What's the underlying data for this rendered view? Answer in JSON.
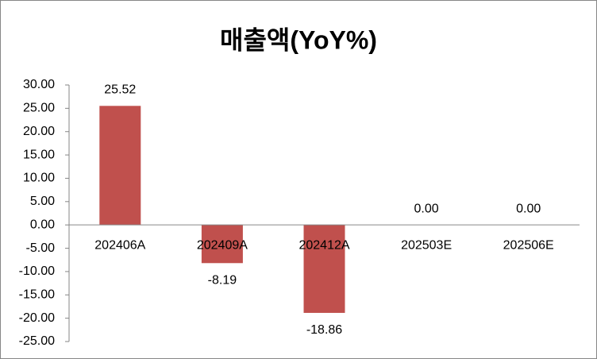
{
  "chart_data": {
    "type": "bar",
    "title": "매출액(YoY%)",
    "categories": [
      "202406A",
      "202409A",
      "202412A",
      "202503E",
      "202506E"
    ],
    "values": [
      25.52,
      -8.19,
      -18.86,
      0,
      0
    ],
    "value_labels": [
      "25.52",
      "-8.19",
      "-18.86",
      "0.00",
      "0.00"
    ],
    "color": "#c0504d",
    "ylim": [
      -25,
      30
    ],
    "yticks": [
      {
        "value": 30,
        "label": "30.00"
      },
      {
        "value": 25,
        "label": "25.00"
      },
      {
        "value": 20,
        "label": "20.00"
      },
      {
        "value": 15,
        "label": "15.00"
      },
      {
        "value": 10,
        "label": "10.00"
      },
      {
        "value": 5,
        "label": "5.00"
      },
      {
        "value": 0,
        "label": "0.00"
      },
      {
        "value": -5,
        "label": "-5.00"
      },
      {
        "value": -10,
        "label": "-10.00"
      },
      {
        "value": -15,
        "label": "-15.00"
      },
      {
        "value": -20,
        "label": "-20.00"
      },
      {
        "value": -25,
        "label": "-25.00"
      }
    ],
    "grid": false
  }
}
